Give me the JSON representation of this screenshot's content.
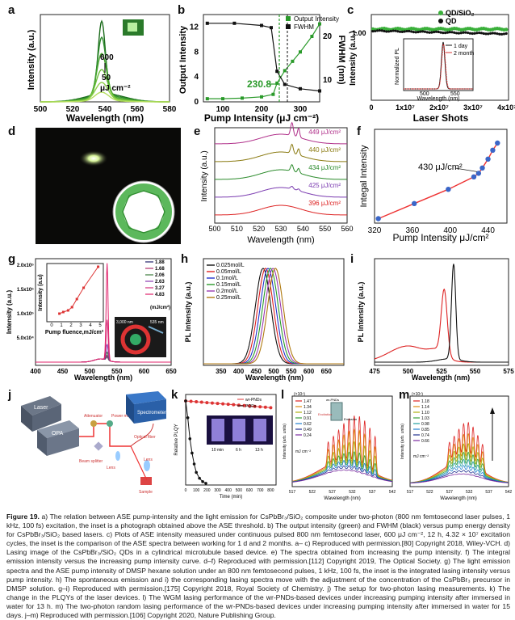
{
  "panels": {
    "a": {
      "label": "a",
      "xlabel": "Wavelength (nm)",
      "ylabel": "Intensity (a.u.)",
      "xticks": [
        "500",
        "520",
        "540",
        "560",
        "580"
      ],
      "note_top": "600",
      "note_bot": "50",
      "unit": "μJ cm⁻²"
    },
    "b": {
      "label": "b",
      "xlabel": "Pump Intensity (μJ cm⁻²)",
      "ylabel_left": "Output Intensity",
      "ylabel_right": "FWHM (nm)",
      "xticks": [
        "100",
        "200",
        "300"
      ],
      "yticks_left": [
        "0",
        "4",
        "8",
        "12"
      ],
      "yticks_right": [
        "10",
        "20"
      ],
      "legend": [
        "Output Intensity",
        "FWHM"
      ],
      "threshold": "230.8"
    },
    "c": {
      "label": "c",
      "xlabel": "Laser Shots",
      "ylabel": "Intensity (a.u.)",
      "xticks": [
        "0",
        "1x10⁷",
        "2x10⁷",
        "3x10⁷",
        "4x10⁷"
      ],
      "ytick": "1.00",
      "legend": [
        "QD/SiO₂",
        "QD"
      ],
      "inset": {
        "ylabel": "Normalized PL",
        "xlabel": "Wavelength (nm)",
        "xticks": [
          "500",
          "550"
        ],
        "legend": [
          "1 day",
          "2 month"
        ]
      }
    },
    "d": {
      "label": "d"
    },
    "e": {
      "label": "e",
      "xlabel": "Wavelength (nm)",
      "ylabel": "Intensity (a.u.)",
      "xticks": [
        "500",
        "510",
        "520",
        "530",
        "540",
        "550",
        "560"
      ],
      "traces": [
        "449 μJ/cm²",
        "440 μJ/cm²",
        "434 μJ/cm²",
        "425 μJ/cm²",
        "396 μJ/cm²"
      ]
    },
    "f": {
      "label": "f",
      "xlabel": "Pump Intensity μJ/cm²",
      "ylabel": "Integal Intensity",
      "xticks": [
        "320",
        "360",
        "400",
        "440"
      ],
      "threshold": "430 μJ/cm²"
    },
    "g": {
      "label": "g",
      "xlabel": "Wavelength (nm)",
      "ylabel": "Intensity (a.u.)",
      "xticks": [
        "400",
        "450",
        "500",
        "550",
        "600",
        "650"
      ],
      "yticks": [
        "5.0x10⁴",
        "1.0x10⁵",
        "1.5x10⁵",
        "2.0x10⁵"
      ],
      "legend": [
        "1.88",
        "1.68",
        "2.06",
        "2.63",
        "3.27",
        "4.83"
      ],
      "legend_unit": "(mJ/cm²)",
      "inset": {
        "xlabel": "Pump fluence,mJ/cm²",
        "ylabel": "Intensity (a.u)",
        "xticks": [
          "0",
          "1",
          "2",
          "3",
          "4",
          "5"
        ]
      },
      "scale": "3,000 nm",
      "scale2": "535 nm"
    },
    "h": {
      "label": "h",
      "xlabel": "Wavelength (nm)",
      "ylabel": "PL Intensity (a.u.)",
      "xticks": [
        "350",
        "400",
        "450",
        "500",
        "550",
        "600",
        "650"
      ],
      "legend": [
        "0.025mol/L",
        "0.05mol/L",
        "0.1mol/L",
        "0.15mol/L",
        "0.2mol/L",
        "0.25mol/L"
      ]
    },
    "i": {
      "label": "i",
      "xlabel": "Wavelength (nm)",
      "ylabel": "PL Intensity (a.u.)",
      "xticks": [
        "475",
        "500",
        "525",
        "550",
        "575"
      ]
    },
    "j": {
      "label": "j",
      "parts": [
        "Laser",
        "OPA",
        "Attenuator",
        "Power meter",
        "Beam splitter",
        "Lens",
        "Spectrometer",
        "Optical fiber",
        "Lens",
        "Sample"
      ]
    },
    "k": {
      "label": "k",
      "xlabel": "Time (min)",
      "ylabel": "Relative PLQY",
      "xticks": [
        "0",
        "100",
        "200",
        "300",
        "400",
        "500",
        "600",
        "700",
        "800"
      ],
      "legend": [
        "wr-PNDs",
        "PQDs"
      ],
      "inset_labels": [
        "10 min",
        "6 h",
        "13 h"
      ]
    },
    "l": {
      "label": "l",
      "xlabel": "Wavelength (nm)",
      "ylabel": "Intensity (arb. units)",
      "exp": "(×10⁴)",
      "xticks": [
        "517",
        "522",
        "527",
        "532",
        "537",
        "542"
      ],
      "legend": [
        "1.47",
        "1.34",
        "1.12",
        "0.91",
        "0.62",
        "0.49",
        "0.24"
      ],
      "unit": "mJ cm⁻²",
      "inset": [
        "wr-PNDs",
        "Excitation",
        "Emission"
      ]
    },
    "m": {
      "label": "m",
      "xlabel": "Wavelength (nm)",
      "ylabel": "Intensity (arb. units)",
      "exp": "(×10⁴)",
      "xticks": [
        "517",
        "522",
        "527",
        "532",
        "537",
        "542"
      ],
      "legend": [
        "1.18",
        "1.14",
        "1.10",
        "1.03",
        "0.98",
        "0.85",
        "0.74",
        "0.66"
      ],
      "unit": "mJ cm⁻²"
    }
  },
  "caption": {
    "fig": "Figure 19.",
    "text": "a) The relation between ASE pump-intensity and the light emission for CsPbBr₃/SiO₂ composite under two-photon (800 nm femtosecond laser pulses, 1 kHz, 100 fs) excitation, the inset is a photograph obtained above the ASE threshold. b) The output intensity (green) and FWHM (black) versus pump energy density for CsPbBr₃/SiO₂ based lasers. c) Plots of ASE intensity measured under continuous pulsed 800 nm femtosecond laser, 600 μJ cm⁻², 12 h, 4.32 × 10⁷ excitation cycles, the inset is the comparison of the ASE spectra between working for 1 d and 2 months. a– c) Reproduced with permission.[80] Copyright 2018, Wiley-VCH. d) Lasing image of the CsPbBr₃/SiO₂ QDs in a cylindrical microtubule based device. e) The spectra obtained from increasing the pump intensity. f) The integral emission intensity versus the increasing pump intensity curve. d–f) Reproduced with permission.[112] Copyright 2019, The Optical Society. g) The light emission spectra and the ASE pump intensity of DMSP hexane solution under an 800 nm femtosecond pulses, 1 kHz, 100 fs, the inset is the integrated lasing intensity versus pump intensity. h) The spontaneous emission and i) the corresponding lasing spectra move with the adjustment of the concentration of the CsPbBr₃ precursor in DMSP solution. g–i) Reproduced with permission.[175] Copyright 2018, Royal Society of Chemistry. j) The setup for two-photon lasing measurements. k) The change in the PLQYs of the laser devices. l) The WGM lasing performance of the wr-PNDs-based devices under increasing pumping intensity after immersed in water for 13 h. m) The two-photon random lasing performance of the wr-PNDs-based devices under increasing pumping intensity after immersed in water for 15 days. j–m) Reproduced with permission.[106] Copyright 2020, Nature Publishing Group."
  }
}
